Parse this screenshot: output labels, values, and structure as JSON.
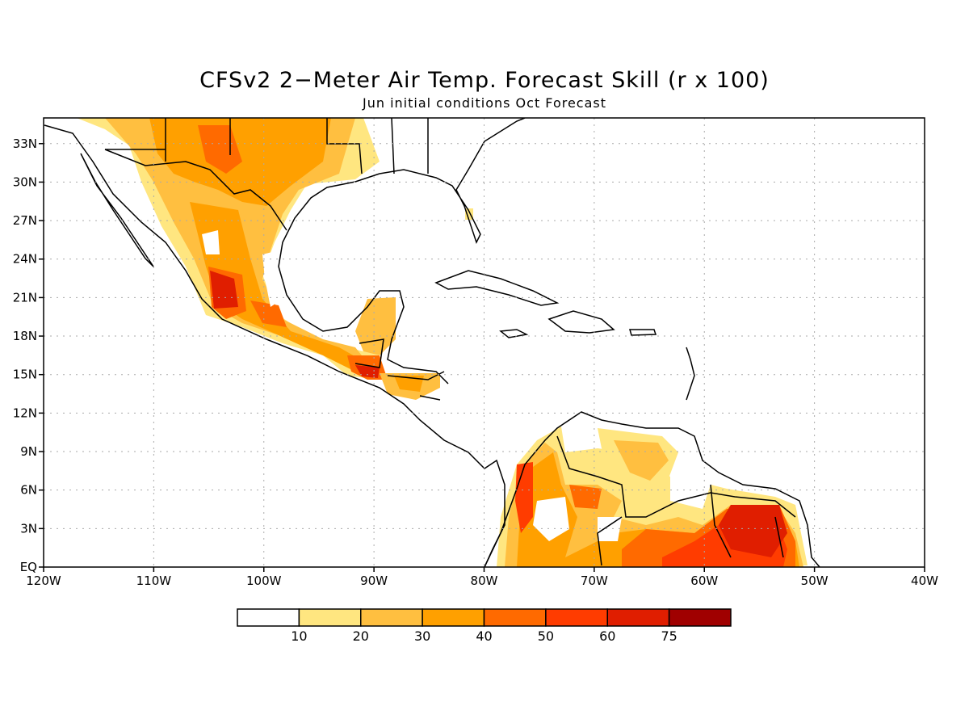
{
  "title": "CFSv2 2−Meter Air Temp. Forecast Skill (r x 100)",
  "subtitle": "Jun initial conditions  Oct Forecast",
  "map": {
    "lon_range": [
      -120,
      -40
    ],
    "lat_range": [
      0,
      35
    ],
    "grid": true,
    "lon_ticks": [
      {
        "lon": -120,
        "label": "120W"
      },
      {
        "lon": -110,
        "label": "110W"
      },
      {
        "lon": -100,
        "label": "100W"
      },
      {
        "lon": -90,
        "label": "90W"
      },
      {
        "lon": -80,
        "label": "80W"
      },
      {
        "lon": -70,
        "label": "70W"
      },
      {
        "lon": -60,
        "label": "60W"
      },
      {
        "lon": -50,
        "label": "50W"
      },
      {
        "lon": -40,
        "label": "40W"
      }
    ],
    "lat_ticks": [
      {
        "lat": 0,
        "label": "EQ"
      },
      {
        "lat": 3,
        "label": "3N"
      },
      {
        "lat": 6,
        "label": "6N"
      },
      {
        "lat": 9,
        "label": "9N"
      },
      {
        "lat": 12,
        "label": "12N"
      },
      {
        "lat": 15,
        "label": "15N"
      },
      {
        "lat": 18,
        "label": "18N"
      },
      {
        "lat": 21,
        "label": "21N"
      },
      {
        "lat": 24,
        "label": "24N"
      },
      {
        "lat": 27,
        "label": "27N"
      },
      {
        "lat": 30,
        "label": "30N"
      },
      {
        "lat": 33,
        "label": "33N"
      }
    ]
  },
  "colorbar": {
    "colors": [
      "#ffffff",
      "#ffe680",
      "#ffbf40",
      "#ffa000",
      "#ff6a00",
      "#ff3c00",
      "#e01e00",
      "#a00000"
    ],
    "labels": [
      "10",
      "20",
      "30",
      "40",
      "50",
      "60",
      "75"
    ]
  }
}
